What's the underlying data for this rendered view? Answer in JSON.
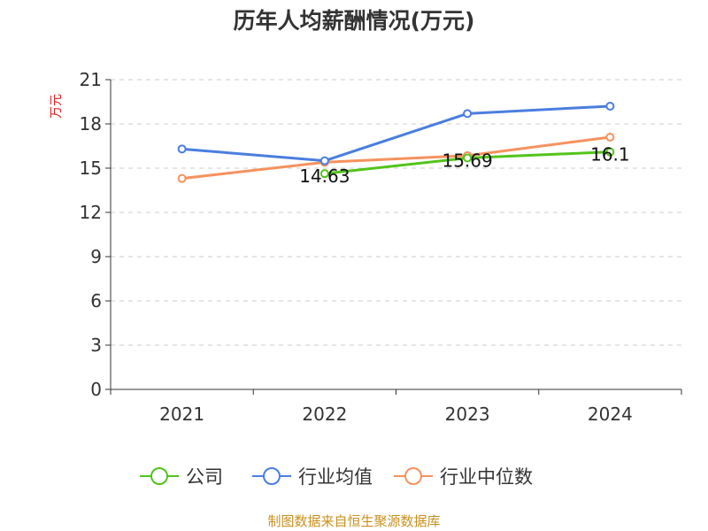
{
  "chart_data": {
    "type": "line",
    "title": "历年人均薪酬情况(万元)",
    "ylabel": "万元",
    "xlabel": "",
    "categories": [
      "2021",
      "2022",
      "2023",
      "2024"
    ],
    "ylim": [
      0,
      21
    ],
    "yticks": [
      0,
      3,
      6,
      9,
      12,
      15,
      18,
      21
    ],
    "grid": true,
    "legend_position": "bottom",
    "series": [
      {
        "name": "公司",
        "color": "#52c41a",
        "values": [
          null,
          14.63,
          15.69,
          16.1
        ],
        "data_labels": [
          null,
          "14.63",
          "15.69",
          "16.1"
        ]
      },
      {
        "name": "行业均值",
        "color": "#4a7ee0",
        "values": [
          16.3,
          15.5,
          18.7,
          19.2
        ]
      },
      {
        "name": "行业中位数",
        "color": "#f5925e",
        "values": [
          14.3,
          15.4,
          15.85,
          17.1
        ]
      }
    ]
  },
  "footer": {
    "source": "制图数据来自恒生聚源数据库"
  }
}
